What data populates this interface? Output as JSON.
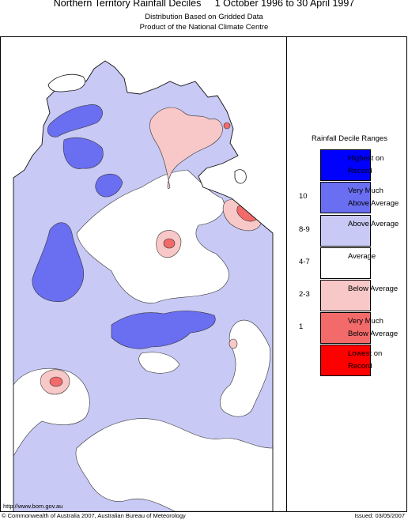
{
  "header": {
    "title": "Northern Territory Rainfall Deciles     1 October 1996 to 30 April 1997",
    "subtitle1": "Distribution Based on Gridded Data",
    "subtitle2": "Product of the National Climate Centre"
  },
  "legend": {
    "title": "Rainfall Decile Ranges",
    "items": [
      {
        "range": "",
        "label": "Highest on Record",
        "color": "#0000ff"
      },
      {
        "range": "10",
        "label": "Very Much Above Average",
        "color": "#6a6ef0"
      },
      {
        "range": "8-9",
        "label": "Above Average",
        "color": "#c8c9f4"
      },
      {
        "range": "4-7",
        "label": "Average",
        "color": "#ffffff"
      },
      {
        "range": "2-3",
        "label": "Below Average",
        "color": "#f8c8c8"
      },
      {
        "range": "1",
        "label": "Very Much Below Average",
        "color": "#f26a6a"
      },
      {
        "range": "",
        "label": "Lowest on Record",
        "color": "#ff0000"
      }
    ]
  },
  "footer": {
    "url": "http://www.bom.gov.au",
    "copyright": "© Commonwealth of Australia 2007, Australian Bureau of Meteorology",
    "issued": "Issued: 03/05/2007"
  }
}
